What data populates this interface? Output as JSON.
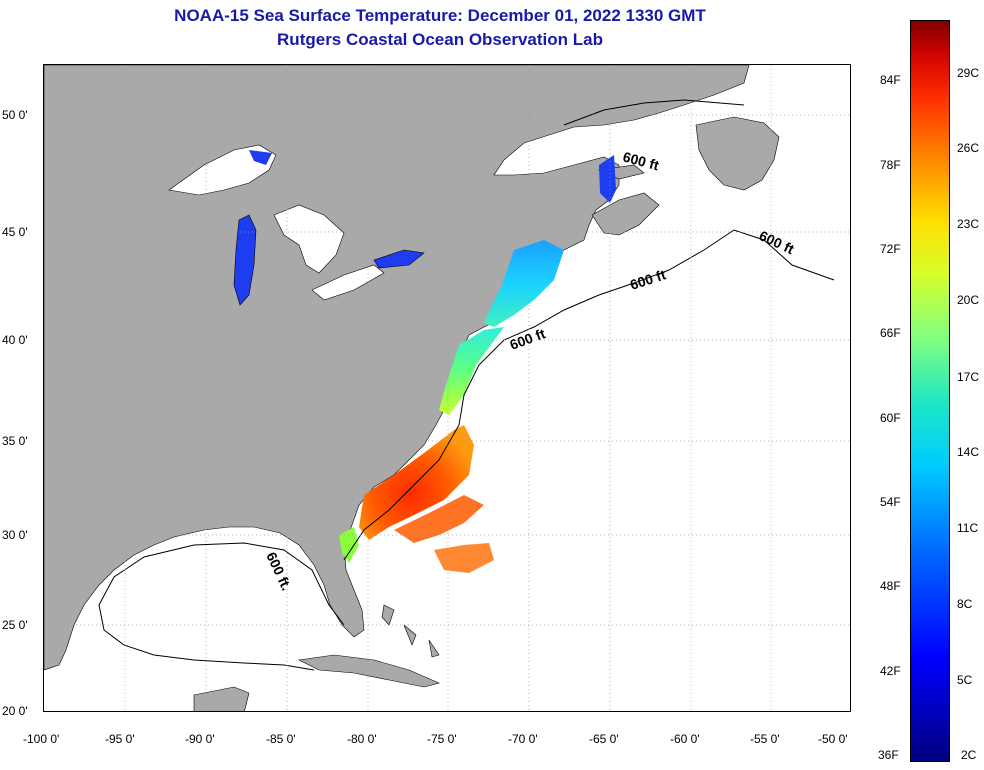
{
  "title": {
    "line1": "NOAA-15 Sea Surface Temperature:  December 01, 2022 1330 GMT",
    "line2": "Rutgers Coastal Ocean Observation Lab"
  },
  "axes": {
    "longitude_labels": [
      "-100 0'",
      "-95 0'",
      "-90 0'",
      "-85 0'",
      "-80 0'",
      "-75 0'",
      "-70 0'",
      "-65 0'",
      "-60 0'",
      "-55 0'",
      "-50 0'"
    ],
    "latitude_labels": [
      "50 0'",
      "45 0'",
      "40 0'",
      "35 0'",
      "30 0'",
      "25 0'",
      "20 0'"
    ]
  },
  "contour_labels": [
    "600 ft",
    "600 ft",
    "600 ft",
    "600 ft",
    "600 ft."
  ],
  "colorbar": {
    "fahrenheit_labels": [
      "84F",
      "78F",
      "72F",
      "66F",
      "60F",
      "54F",
      "48F",
      "42F",
      "36F"
    ],
    "celsius_labels": [
      "29C",
      "26C",
      "23C",
      "20C",
      "17C",
      "14C",
      "11C",
      "8C",
      "5C",
      "2C"
    ]
  },
  "colors": {
    "land": "#a9a9a9",
    "ocean_no_data": "#ffffff",
    "title_text": "#1a1aa6",
    "grid": "#9a9a9a"
  }
}
